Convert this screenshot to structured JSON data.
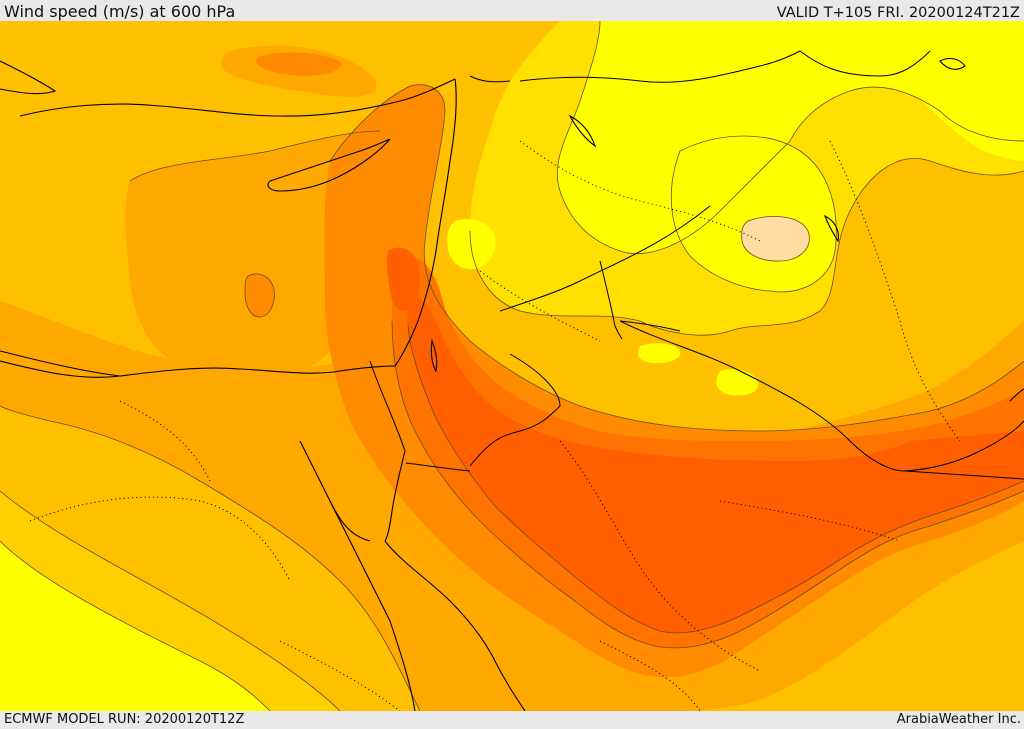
{
  "header": {
    "title": "Wind speed (m/s) at 600 hPa",
    "valid_time": "VALID T+105 FRI. 20200124T21Z"
  },
  "footer": {
    "model_run": "ECMWF MODEL RUN: 20200120T12Z",
    "credit": "ArabiaWeather Inc."
  },
  "map": {
    "field": "wind speed",
    "level": "600 hPa",
    "palette": {
      "lowest": "#ffff00",
      "low": "#ffe000",
      "low_mid": "#ffd000",
      "mid": "#ffc000",
      "mid_high": "#ffa800",
      "high": "#ff8c00",
      "higher": "#ff7300",
      "highest": "#ff5f00",
      "calm_patch": "#ffdca0"
    },
    "colors": {
      "contour_line": "#6b4a2a",
      "border_line": "#000000",
      "coast_line": "#000000"
    }
  }
}
